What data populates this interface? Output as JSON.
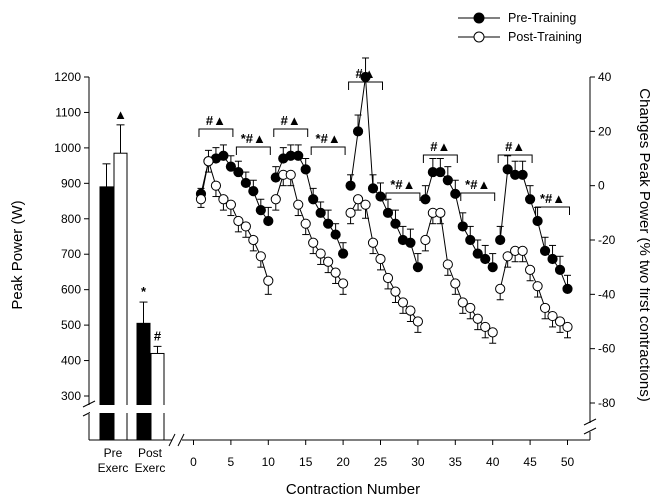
{
  "chart_data": [
    {
      "type": "bar",
      "categories": [
        "Pre\nExerc",
        "Post\nExerc"
      ],
      "ylabel": "Peak Power (W)",
      "ylim": [
        250,
        1200
      ],
      "y_ticks": [
        300,
        400,
        500,
        600,
        700,
        800,
        900,
        1000,
        1100,
        1200
      ],
      "y_axis_break": true,
      "series": [
        {
          "name": "Pre-Training",
          "fill": "#000000",
          "values": [
            890,
            505
          ],
          "errors": [
            65,
            60
          ]
        },
        {
          "name": "Post-Training",
          "fill": "#ffffff",
          "values": [
            985,
            420
          ],
          "errors": [
            80,
            20
          ]
        }
      ],
      "annotations": [
        {
          "category": 0,
          "series": 1,
          "text": "▲"
        },
        {
          "category": 1,
          "series": 0,
          "text": "*"
        },
        {
          "category": 1,
          "series": 1,
          "text": "#"
        }
      ]
    },
    {
      "type": "line",
      "xlabel": "Contraction Number",
      "ylabel_right": "Changes Peak Power (% two first contractions)",
      "xlim": [
        0,
        51.5
      ],
      "x_ticks": [
        0,
        5,
        10,
        15,
        20,
        25,
        30,
        35,
        40,
        45,
        50
      ],
      "y_ticks_right": [
        -80,
        -60,
        -40,
        -20,
        0,
        20,
        40
      ],
      "y_axis_break": true,
      "legend": {
        "position": "top-right"
      },
      "x": [
        1,
        2,
        3,
        4,
        5,
        6,
        7,
        8,
        9,
        10,
        11,
        12,
        13,
        14,
        15,
        16,
        17,
        18,
        19,
        20,
        21,
        22,
        23,
        24,
        25,
        26,
        27,
        28,
        29,
        30,
        31,
        32,
        33,
        34,
        35,
        36,
        37,
        38,
        39,
        40,
        41,
        42,
        43,
        44,
        45,
        46,
        47,
        48,
        49,
        50
      ],
      "series": [
        {
          "name": "Pre-Training",
          "marker": "filled-circle",
          "values": [
            -3,
            9,
            10,
            11,
            7,
            5,
            1,
            -2,
            -9,
            -13,
            3,
            10,
            11,
            11,
            6,
            -5,
            -10,
            -14,
            -18,
            -25,
            0,
            20,
            40,
            -1,
            -4,
            -10,
            -14,
            -20,
            -21,
            -30,
            -5,
            5,
            5,
            2,
            -3,
            -15,
            -20,
            -25,
            -27,
            -30,
            -20,
            6,
            4,
            4,
            -5,
            -13,
            -24,
            -27,
            -31,
            -38
          ],
          "errors": [
            2,
            4,
            4,
            4,
            4,
            4,
            4,
            4,
            4,
            5,
            4,
            4,
            4,
            4,
            4,
            4,
            4,
            5,
            4,
            4,
            4,
            6,
            7,
            5,
            5,
            5,
            5,
            5,
            5,
            5,
            5,
            5,
            5,
            5,
            5,
            5,
            5,
            5,
            5,
            5,
            5,
            5,
            5,
            5,
            5,
            5,
            5,
            5,
            5,
            5
          ]
        },
        {
          "name": "Post-Training",
          "marker": "open-circle",
          "values": [
            -5,
            9,
            0,
            -5,
            -7,
            -13,
            -15,
            -20,
            -26,
            -35,
            -5,
            4,
            4,
            -7,
            -14,
            -21,
            -25,
            -28,
            -32,
            -36,
            -10,
            -5,
            -7,
            -21,
            -27,
            -34,
            -39,
            -43,
            -46,
            -50,
            -20,
            -10,
            -10,
            -29,
            -36,
            -43,
            -45,
            -49,
            -52,
            -54,
            -38,
            -26,
            -24,
            -24,
            -31,
            -37,
            -45,
            -48,
            -50,
            -52
          ],
          "errors": [
            3,
            4,
            4,
            4,
            4,
            4,
            4,
            4,
            4,
            5,
            4,
            4,
            4,
            4,
            4,
            4,
            4,
            4,
            4,
            4,
            4,
            4,
            5,
            4,
            4,
            4,
            4,
            4,
            4,
            4,
            4,
            4,
            4,
            4,
            4,
            4,
            4,
            4,
            4,
            4,
            4,
            4,
            4,
            4,
            4,
            4,
            4,
            4,
            4,
            4
          ]
        }
      ],
      "significance": [
        {
          "x": [
            1,
            5
          ],
          "text": "#▲"
        },
        {
          "x": [
            6,
            10
          ],
          "text": "*#▲"
        },
        {
          "x": [
            11,
            15
          ],
          "text": "#▲"
        },
        {
          "x": [
            16,
            20
          ],
          "text": "*#▲"
        },
        {
          "x": [
            21,
            25
          ],
          "text": "#▲"
        },
        {
          "x": [
            26,
            30
          ],
          "text": "*#▲"
        },
        {
          "x": [
            31,
            35
          ],
          "text": "#▲"
        },
        {
          "x": [
            36,
            40
          ],
          "text": "*#▲"
        },
        {
          "x": [
            41,
            45
          ],
          "text": "#▲"
        },
        {
          "x": [
            46,
            50
          ],
          "text": "*#▲"
        }
      ]
    }
  ]
}
